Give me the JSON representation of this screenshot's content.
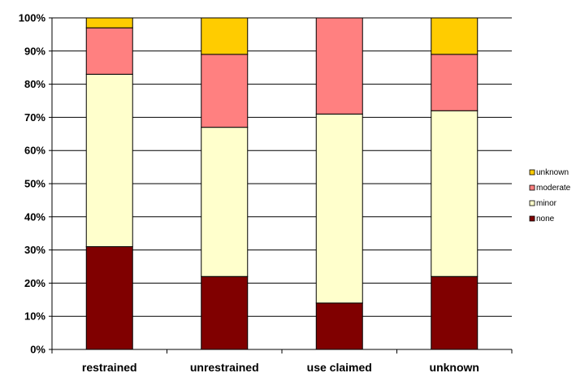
{
  "chart_data": {
    "type": "bar",
    "stacked": true,
    "normalized": true,
    "categories": [
      "restrained",
      "unrestrained",
      "use claimed",
      "unknown"
    ],
    "series": [
      {
        "name": "none",
        "color": "#800000",
        "values": [
          31,
          22,
          14,
          22
        ]
      },
      {
        "name": "minor",
        "color": "#FFFFCC",
        "values": [
          52,
          45,
          57,
          50
        ]
      },
      {
        "name": "moderate",
        "color": "#FF8080",
        "values": [
          14,
          22,
          29,
          17
        ]
      },
      {
        "name": "unknown",
        "color": "#FFCC00",
        "values": [
          3,
          11,
          0,
          11
        ]
      }
    ],
    "y_ticks": [
      "0%",
      "10%",
      "20%",
      "30%",
      "40%",
      "50%",
      "60%",
      "70%",
      "80%",
      "90%",
      "100%"
    ],
    "ylim": [
      0,
      100
    ],
    "grid": "horizontal",
    "legend_position": "right",
    "title": "",
    "xlabel": "",
    "ylabel": ""
  }
}
